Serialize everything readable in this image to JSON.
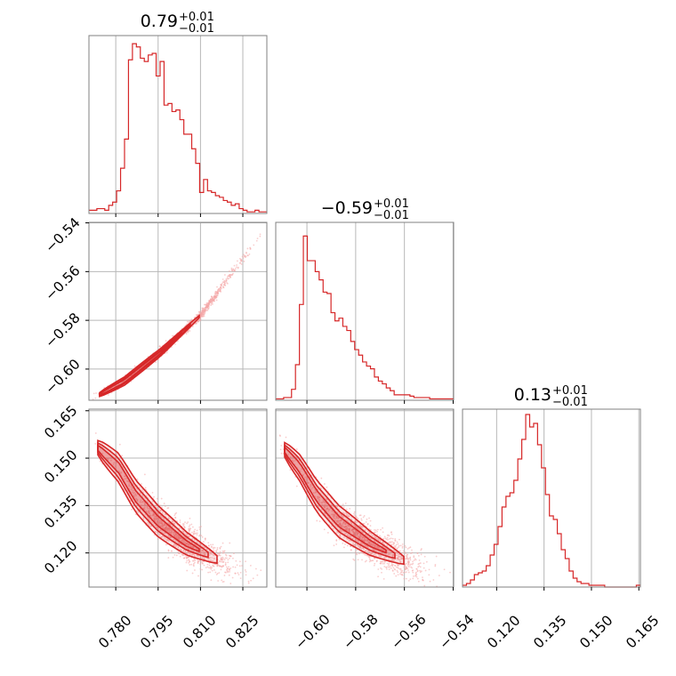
{
  "figure": {
    "type": "corner",
    "hist_color": "#d62728",
    "contour_color": "#d62728",
    "scatter_color": "#f4a6a6",
    "frame_color": "#808080",
    "grid_color": "#b8b8b8"
  },
  "chart_data": [
    {
      "type": "histogram",
      "panel": "diag-1",
      "title_value": "0.79",
      "title_plus": "+0.01",
      "title_minus": "−0.01",
      "xlim": [
        0.7705,
        0.8335
      ],
      "bin_edges_start": 0.7705,
      "bin_width": 0.0014,
      "counts": [
        2,
        2,
        3,
        3,
        2,
        5,
        7,
        14,
        28,
        46,
        95,
        105,
        103,
        96,
        94,
        98,
        99,
        85,
        94,
        67,
        68,
        63,
        64,
        58,
        49,
        49,
        40,
        31,
        13,
        21,
        14,
        13,
        11,
        10,
        8,
        7,
        5,
        6,
        3,
        2,
        1,
        1,
        2,
        1,
        1
      ],
      "ylim": [
        0,
        110
      ]
    },
    {
      "type": "histogram",
      "panel": "diag-2",
      "title_value": "−0.59",
      "title_plus": "+0.01",
      "title_minus": "−0.01",
      "xlim": [
        -0.6128,
        -0.5398
      ],
      "bin_edges_start": -0.6128,
      "bin_width": 0.00162,
      "counts": [
        1,
        1,
        2,
        2,
        8,
        26,
        70,
        120,
        102,
        102,
        94,
        88,
        79,
        78,
        64,
        58,
        60,
        54,
        51,
        43,
        37,
        33,
        28,
        25,
        23,
        17,
        14,
        12,
        9,
        7,
        4,
        4,
        4,
        4,
        3,
        2,
        2,
        2,
        2,
        1,
        1,
        1,
        1,
        1,
        1
      ],
      "ylim": [
        0,
        130
      ]
    },
    {
      "type": "histogram",
      "panel": "diag-3",
      "title_value": "0.13",
      "title_plus": "+0.01",
      "title_minus": "−0.01",
      "xlim": [
        0.1092,
        0.1655
      ],
      "bin_edges_start": 0.1092,
      "bin_width": 0.00125,
      "counts": [
        1,
        2,
        4,
        7,
        8,
        9,
        12,
        18,
        24,
        34,
        45,
        51,
        53,
        60,
        72,
        83,
        97,
        90,
        92,
        80,
        67,
        52,
        40,
        38,
        30,
        21,
        16,
        9,
        5,
        3,
        2,
        2,
        1,
        1,
        1,
        1,
        0,
        0,
        0,
        0,
        0,
        0,
        0,
        0,
        1
      ],
      "ylim": [
        0,
        100
      ]
    },
    {
      "type": "scatter",
      "panel": "pair-2-1",
      "x_param": 1,
      "y_param": 2,
      "xlim": [
        0.7705,
        0.8335
      ],
      "ylim": [
        -0.6128,
        -0.5398
      ],
      "ridge": {
        "x": [
          0.7705,
          0.783,
          0.796,
          0.81,
          0.8335
        ],
        "y": [
          -0.6128,
          -0.605,
          -0.593,
          -0.578,
          -0.5412
        ]
      },
      "samples": 1400
    },
    {
      "type": "scatter",
      "panel": "pair-3-1",
      "x_param": 1,
      "y_param": 3,
      "xlim": [
        0.7705,
        0.8335
      ],
      "ylim": [
        0.1092,
        0.1655
      ],
      "ridge": {
        "x": [
          0.7705,
          0.781,
          0.787,
          0.795,
          0.805,
          0.82,
          0.8335
        ],
        "y": [
          0.156,
          0.147,
          0.138,
          0.13,
          0.123,
          0.116,
          0.11
        ]
      },
      "samples": 1400
    },
    {
      "type": "scatter",
      "panel": "pair-3-2",
      "x_param": 2,
      "y_param": 3,
      "xlim": [
        -0.6128,
        -0.5398
      ],
      "ylim": [
        0.1092,
        0.1655
      ],
      "ridge": {
        "x": [
          -0.6128,
          -0.603,
          -0.596,
          -0.587,
          -0.574,
          -0.556,
          -0.5398
        ],
        "y": [
          0.156,
          0.147,
          0.138,
          0.13,
          0.123,
          0.116,
          0.11
        ]
      },
      "samples": 1400
    }
  ],
  "axes": {
    "x1": {
      "ticks": [
        0.78,
        0.795,
        0.81,
        0.825
      ],
      "labels": [
        "0.780",
        "0.795",
        "0.810",
        "0.825"
      ]
    },
    "x2": {
      "ticks": [
        -0.6,
        -0.58,
        -0.56,
        -0.54
      ],
      "labels": [
        "−0.60",
        "−0.58",
        "−0.56",
        "−0.54"
      ]
    },
    "x3": {
      "ticks": [
        0.12,
        0.135,
        0.15,
        0.165
      ],
      "labels": [
        "0.120",
        "0.135",
        "0.150",
        "0.165"
      ]
    },
    "y2": {
      "ticks": [
        -0.54,
        -0.56,
        -0.58,
        -0.6
      ],
      "labels": [
        "−0.54",
        "−0.56",
        "−0.58",
        "−0.60"
      ]
    },
    "y3": {
      "ticks": [
        0.165,
        0.15,
        0.135,
        0.12
      ],
      "labels": [
        "0.165",
        "0.150",
        "0.135",
        "0.120"
      ]
    }
  }
}
